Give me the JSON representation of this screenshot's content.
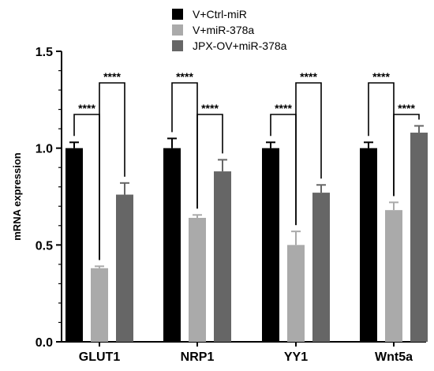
{
  "chart_data": {
    "type": "bar",
    "ylabel": "mRNA expression",
    "ylim": [
      0,
      1.5
    ],
    "yticks": [
      "0.0",
      "0.5",
      "1.0",
      "1.5"
    ],
    "categories": [
      "GLUT1",
      "NRP1",
      "YY1",
      "Wnt5a"
    ],
    "series": [
      {
        "name": "V+Ctrl-miR",
        "color": "#000000",
        "values": [
          1.0,
          1.0,
          1.0,
          1.0
        ],
        "errors": [
          0.03,
          0.05,
          0.03,
          0.03
        ]
      },
      {
        "name": "V+miR-378a",
        "color": "#aaaaaa",
        "values": [
          0.38,
          0.64,
          0.5,
          0.68
        ],
        "errors": [
          0.01,
          0.015,
          0.07,
          0.04
        ]
      },
      {
        "name": "JPX-OV+miR-378a",
        "color": "#666666",
        "values": [
          0.76,
          0.88,
          0.77,
          1.08
        ],
        "errors": [
          0.06,
          0.06,
          0.04,
          0.035
        ]
      }
    ],
    "significance": [
      {
        "category": 0,
        "from": 0,
        "to": 1,
        "label": "****",
        "level": "low"
      },
      {
        "category": 0,
        "from": 1,
        "to": 2,
        "label": "****",
        "level": "high"
      },
      {
        "category": 1,
        "from": 0,
        "to": 1,
        "label": "****",
        "level": "high"
      },
      {
        "category": 1,
        "from": 1,
        "to": 2,
        "label": "****",
        "level": "low"
      },
      {
        "category": 2,
        "from": 0,
        "to": 1,
        "label": "****",
        "level": "low"
      },
      {
        "category": 2,
        "from": 1,
        "to": 2,
        "label": "****",
        "level": "high"
      },
      {
        "category": 3,
        "from": 0,
        "to": 1,
        "label": "****",
        "level": "high"
      },
      {
        "category": 3,
        "from": 1,
        "to": 2,
        "label": "****",
        "level": "low"
      }
    ],
    "legend_position": "top-center",
    "grid": false
  }
}
